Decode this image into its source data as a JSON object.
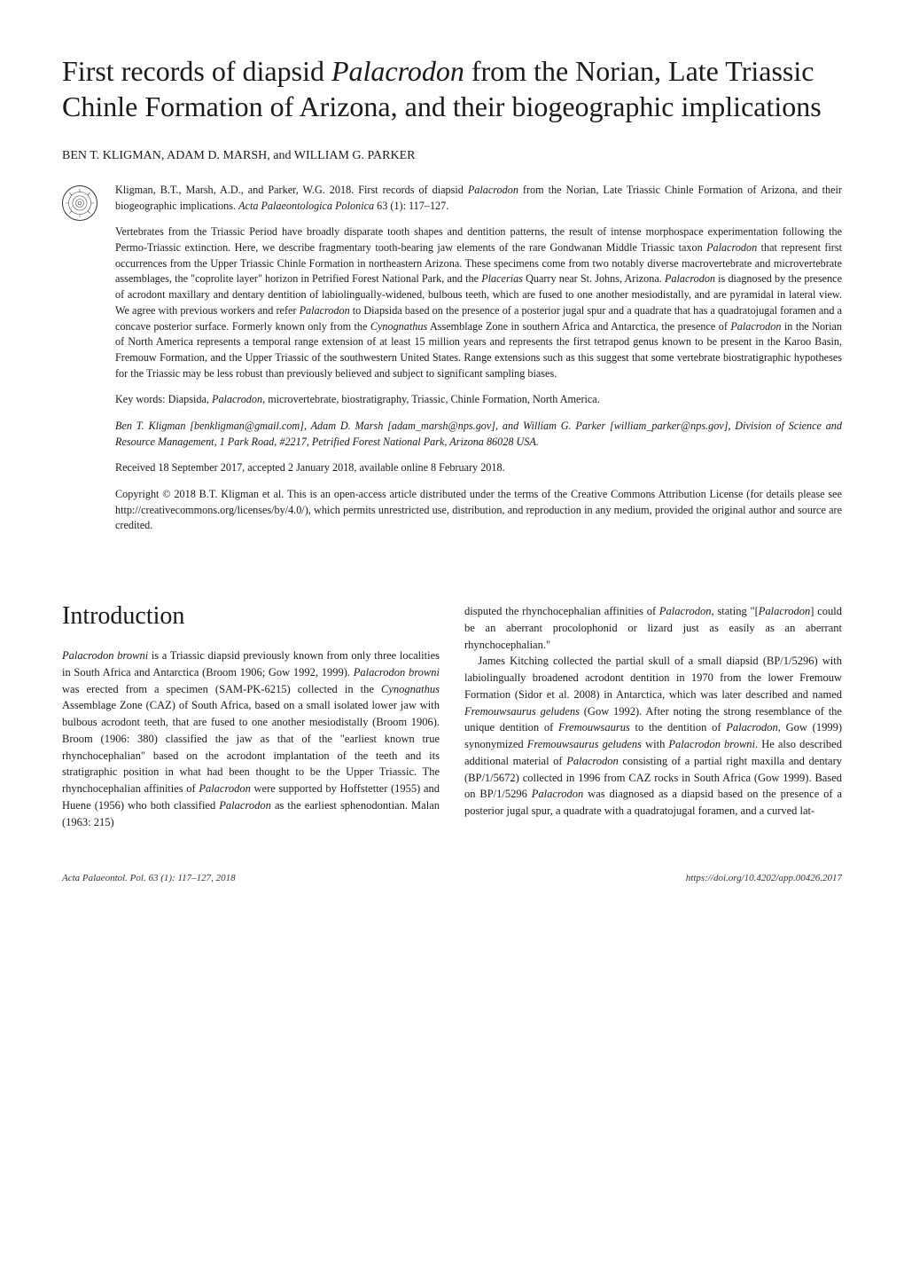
{
  "title_html": "First records of diapsid <em>Palacrodon</em> from the Norian, Late Triassic Chinle Formation of Arizona, and their biogeographic implications",
  "authors": "BEN T. KLIGMAN, ADAM D. MARSH, and WILLIAM G. PARKER",
  "citation_html": "Kligman, B.T., Marsh, A.D., and Parker, W.G. 2018. First records of diapsid <em>Palacrodon</em> from the Norian, Late Triassic Chinle Formation of Arizona, and their biogeographic implications. <em>Acta Palaeontologica Polonica</em> 63 (1): 117–127.",
  "abstract_html": "Vertebrates from the Triassic Period have broadly disparate tooth shapes and dentition patterns, the result of intense morphospace experimentation following the Permo-Triassic extinction. Here, we describe fragmentary tooth-bearing jaw elements of the rare Gondwanan Middle Triassic taxon <em>Palacrodon</em> that represent first occurrences from the Upper Triassic Chinle Formation in northeastern Arizona. These specimens come from two notably diverse macrovertebrate and microvertebrate assemblages, the \"coprolite layer\" horizon in Petrified Forest National Park, and the <em>Placerias</em> Quarry near St. Johns, Arizona. <em>Palacrodon</em> is diagnosed by the presence of acrodont maxillary and dentary dentition of labiolingually-widened, bulbous teeth, which are fused to one another mesiodistally, and are pyramidal in lateral view. We agree with previous workers and refer <em>Palacrodon</em> to Diapsida based on the presence of a posterior jugal spur and a quadrate that has a quadratojugal foramen and a concave posterior surface. Formerly known only from the <em>Cynognathus</em> Assemblage Zone in southern Africa and Antarctica, the presence of <em>Palacrodon</em> in the Norian of North America represents a temporal range extension of at least 15 million years and represents the first tetrapod genus known to be present in the Karoo Basin, Fremouw Formation, and the Upper Triassic of the southwestern United States. Range extensions such as this suggest that some vertebrate biostratigraphic hypotheses for the Triassic may be less robust than previously believed and subject to significant sampling biases.",
  "keywords_html": "Key words: Diapsida, <em>Palacrodon</em>, microvertebrate, biostratigraphy, Triassic, Chinle Formation, North America.",
  "affiliation_html": "Ben T. Kligman [benkligman@gmail.com], Adam D. Marsh [adam_marsh@nps.gov], and William G. Parker [william_parker@nps.gov], Division of Science and Resource Management, 1 Park Road, #2217, Petrified Forest National Park, Arizona 86028 USA.",
  "received": "Received 18 September 2017, accepted 2 January 2018, available online 8 February 2018.",
  "copyright": "Copyright © 2018 B.T. Kligman et al. This is an open-access article distributed under the terms of the Creative Commons Attribution License (for details please see http://creativecommons.org/licenses/by/4.0/), which permits unrestricted use, distribution, and reproduction in any medium, provided the original author and source are credited.",
  "intro_heading": "Introduction",
  "left_col_html": "<em>Palacrodon browni</em> is a Triassic diapsid previously known from only three localities in South Africa and Antarctica (Broom 1906; Gow 1992, 1999). <em>Palacrodon browni</em> was erected from a specimen (SAM-PK-6215) collected in the <em>Cynognathus</em> Assemblage Zone (CAZ) of South Africa, based on a small isolated lower jaw with bulbous acrodont teeth, that are fused to one another mesiodistally (Broom 1906). Broom (1906: 380) classified the jaw as that of the \"earliest known true rhynchocephalian\" based on the acrodont implantation of the teeth and its stratigraphic position in what had been thought to be the Upper Triassic. The rhynchocephalian affinities of <em>Palacrodon</em> were supported by Hoffstetter (1955) and Huene (1956) who both classified <em>Palacrodon</em> as the earliest sphenodontian. Malan (1963: 215)",
  "right_top_html": "disputed the rhynchocephalian affinities of <em>Palacrodon</em>, stating \"[<em>Palacrodon</em>] could be an aberrant procolophonid or lizard just as easily as an aberrant rhynchocephalian.\"",
  "right_rest_html": "&nbsp;&nbsp;&nbsp;James Kitching collected the partial skull of a small diapsid (BP/1/5296) with labiolingually broadened acrodont dentition in 1970 from the lower Fremouw Formation (Sidor et al. 2008) in Antarctica, which was later described and named <em>Fremouwsaurus geludens</em> (Gow 1992). After noting the strong resemblance of the unique dentition of <em>Fremouwsaurus</em> to the dentition of <em>Palacrodon</em>, Gow (1999) synonymized <em>Fremouwsaurus geludens</em> with <em>Palacrodon browni</em>. He also described additional material of <em>Palacrodon</em> consisting of a partial right maxilla and dentary (BP/1/5672) collected in 1996 from CAZ rocks in South Africa (Gow 1999). Based on BP/1/5296 <em>Palacrodon</em> was diagnosed as a diapsid based on the presence of a posterior jugal spur, a quadrate with a quadratojugal foramen, and a curved lat-",
  "footer_left_html": "<em>Acta Palaeontol. Pol.</em> 63 (1): 117–127, 2018",
  "footer_right": "https://doi.org/10.4202/app.00426.2017",
  "colors": {
    "text": "#1a1a1a",
    "background": "#ffffff",
    "icon_border": "#333333"
  },
  "typography": {
    "title_fontsize": 32,
    "section_heading_fontsize": 28,
    "authors_fontsize": 14,
    "meta_fontsize": 12.2,
    "body_fontsize": 12.5,
    "footer_fontsize": 11
  }
}
